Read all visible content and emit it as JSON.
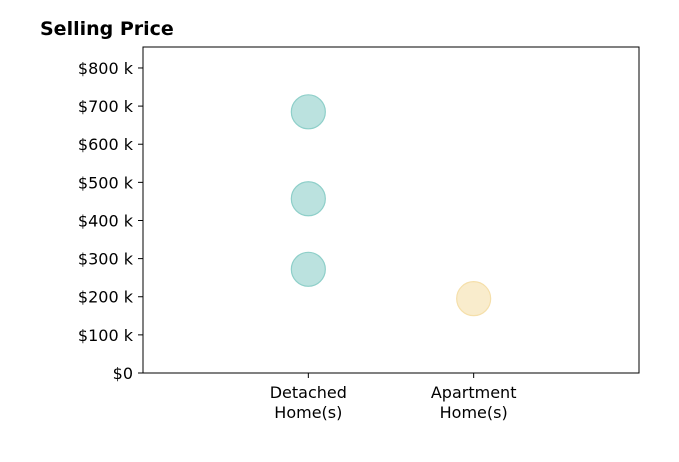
{
  "chart_data": {
    "type": "scatter",
    "title": "Selling Price",
    "xlabel": "",
    "ylabel": "",
    "categories": [
      [
        "Detached",
        "Home(s)"
      ],
      [
        "Apartment",
        "Home(s)"
      ]
    ],
    "xlim": [
      -1,
      2
    ],
    "ylim": [
      0,
      855
    ],
    "yticks": [
      {
        "value": 0,
        "label": "$0"
      },
      {
        "value": 100,
        "label": "$100 k"
      },
      {
        "value": 200,
        "label": "$200 k"
      },
      {
        "value": 300,
        "label": "$300 k"
      },
      {
        "value": 400,
        "label": "$400 k"
      },
      {
        "value": 500,
        "label": "$500 k"
      },
      {
        "value": 600,
        "label": "$600 k"
      },
      {
        "value": 700,
        "label": "$700 k"
      },
      {
        "value": 800,
        "label": "$800 k"
      }
    ],
    "grid": false,
    "legend": "none",
    "series": [
      {
        "color": "#8ecfc9",
        "points": [
          {
            "category": 0,
            "y": 685
          },
          {
            "category": 0,
            "y": 457
          },
          {
            "category": 0,
            "y": 272
          }
        ]
      },
      {
        "color": "#f5dfaa",
        "points": [
          {
            "category": 1,
            "y": 195
          }
        ]
      }
    ]
  }
}
